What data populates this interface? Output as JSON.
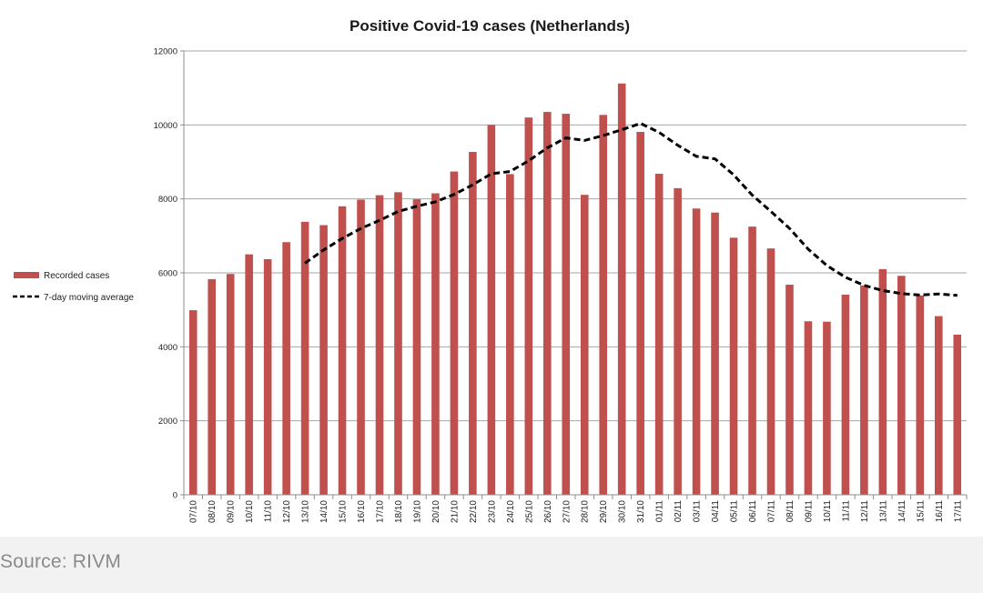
{
  "chart_data": {
    "type": "bar",
    "title": "Positive Covid-19 cases (Netherlands)",
    "xlabel": "",
    "ylabel": "",
    "ylim": [
      0,
      12000
    ],
    "yticks": [
      0,
      2000,
      4000,
      6000,
      8000,
      10000,
      12000
    ],
    "grid": true,
    "legend_position": "left",
    "categories": [
      "07/10",
      "08/10",
      "09/10",
      "10/10",
      "11/10",
      "12/10",
      "13/10",
      "14/10",
      "15/10",
      "16/10",
      "17/10",
      "18/10",
      "19/10",
      "20/10",
      "21/10",
      "22/10",
      "23/10",
      "24/10",
      "25/10",
      "26/10",
      "27/10",
      "28/10",
      "29/10",
      "30/10",
      "31/10",
      "01/11",
      "02/11",
      "03/11",
      "04/11",
      "05/11",
      "06/11",
      "07/11",
      "08/11",
      "09/11",
      "10/11",
      "11/11",
      "12/11",
      "13/11",
      "14/11",
      "15/11",
      "16/11",
      "17/11"
    ],
    "series": [
      {
        "name": "Recorded cases",
        "kind": "bar",
        "color": "#c0504d",
        "values": [
          4990,
          5830,
          5970,
          6500,
          6370,
          6830,
          7380,
          7290,
          7800,
          7980,
          8100,
          8180,
          7990,
          8150,
          8740,
          9270,
          10000,
          8670,
          10200,
          10350,
          10300,
          8110,
          10270,
          11120,
          9810,
          8680,
          8290,
          7740,
          7630,
          6950,
          7250,
          6660,
          5680,
          4690,
          4680,
          5410,
          5660,
          6100,
          5920,
          5390,
          4830,
          4330
        ]
      },
      {
        "name": "7-day moving average",
        "kind": "line",
        "style": "dashed",
        "color": "#000000",
        "values": [
          null,
          null,
          null,
          null,
          null,
          null,
          6260,
          6620,
          6930,
          7200,
          7420,
          7660,
          7800,
          7920,
          8120,
          8380,
          8680,
          8740,
          9030,
          9380,
          9650,
          9580,
          9710,
          9870,
          10040,
          9800,
          9450,
          9150,
          9080,
          8650,
          8100,
          7660,
          7200,
          6640,
          6200,
          5880,
          5660,
          5520,
          5440,
          5400,
          5430,
          5390
        ]
      }
    ]
  },
  "source": "Source: RIVM"
}
